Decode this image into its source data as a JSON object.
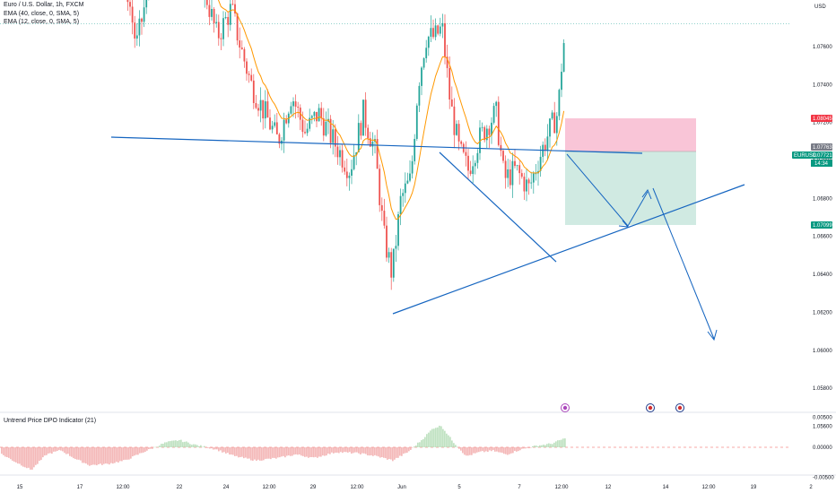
{
  "header": {
    "symbol_line": "Euro / U.S. Dollar, 1h, FXCM",
    "ema_line": "EMA (40, close, 0, SMA, 5)",
    "ema2_line": "EMA (12, close, 0, SMA, 5)",
    "dpo_label": "Untrend Price DPO Indicator (21)"
  },
  "axis": {
    "currency": "USD",
    "price_ticks": [
      "1.08800",
      "1.08600",
      "1.08400",
      "1.08200",
      "1.07600",
      "1.07400",
      "1.07200",
      "1.07000",
      "1.06800",
      "1.06600",
      "1.06400",
      "1.06200",
      "1.06000",
      "1.05800",
      "1.05600"
    ],
    "price_values": [
      1.088,
      1.086,
      1.084,
      1.082,
      1.076,
      1.074,
      1.072,
      1.07,
      1.068,
      1.066,
      1.064,
      1.062,
      1.06,
      1.058,
      1.056
    ],
    "osc_ticks": [
      "0.00500",
      "0.00000",
      "-0.00500"
    ],
    "osc_values": [
      0.005,
      0.0,
      -0.005
    ],
    "time_ticks": [
      "15",
      "17",
      "12:00",
      "22",
      "24",
      "12:00",
      "29",
      "12:00",
      "Jun",
      "5",
      "7",
      "12:00",
      "12",
      "14",
      "12:00",
      "19",
      "2"
    ],
    "time_x": [
      22,
      89,
      137,
      200,
      252,
      300,
      349,
      398,
      448,
      512,
      579,
      626,
      678,
      742,
      790,
      840,
      904
    ]
  },
  "price_badges": {
    "stop_price": "1.08045",
    "entry_price": "1.07763",
    "symbol": "EURUSD",
    "last_price": "1.07721",
    "countdown": "14:34",
    "target_price": "1.07099"
  },
  "colors": {
    "up": "#26a69a",
    "down": "#ef5350",
    "ema": "#ff9800",
    "drawing": "#1565c0",
    "stop_zone": "#f8bbd0",
    "target_zone": "#c8e6dd"
  },
  "chart_data": {
    "type": "candlestick",
    "title": "Euro / U.S. Dollar, 1h, FXCM",
    "ylabel": "USD",
    "ylim": [
      1.0548,
      1.0908
    ],
    "price_series": [
      [
        0,
        1.089
      ],
      [
        15,
        1.0885
      ],
      [
        28,
        1.0862
      ],
      [
        43,
        1.0885
      ],
      [
        58,
        1.0895
      ],
      [
        75,
        1.0875
      ],
      [
        88,
        1.0855
      ],
      [
        105,
        1.082
      ],
      [
        118,
        1.0845
      ],
      [
        130,
        1.0835
      ],
      [
        142,
        1.079
      ],
      [
        152,
        1.076
      ],
      [
        165,
        1.079
      ],
      [
        180,
        1.082
      ],
      [
        195,
        1.0825
      ],
      [
        212,
        1.081
      ],
      [
        228,
        1.079
      ],
      [
        242,
        1.0765
      ],
      [
        258,
        1.078
      ],
      [
        268,
        1.076
      ],
      [
        280,
        1.074
      ],
      [
        295,
        1.0725
      ],
      [
        310,
        1.071
      ],
      [
        325,
        1.0735
      ],
      [
        340,
        1.0715
      ],
      [
        355,
        1.0725
      ],
      [
        372,
        1.071
      ],
      [
        390,
        1.0695
      ],
      [
        405,
        1.0725
      ],
      [
        418,
        1.0705
      ],
      [
        428,
        1.066
      ],
      [
        437,
        1.064
      ],
      [
        447,
        1.068
      ],
      [
        458,
        1.069
      ],
      [
        466,
        1.074
      ],
      [
        475,
        1.0765
      ],
      [
        485,
        1.0765
      ],
      [
        493,
        1.077
      ],
      [
        502,
        1.073
      ],
      [
        512,
        1.0705
      ],
      [
        522,
        1.0695
      ],
      [
        533,
        1.071
      ],
      [
        545,
        1.072
      ],
      [
        553,
        1.0725
      ],
      [
        562,
        1.069
      ],
      [
        575,
        1.0695
      ],
      [
        590,
        1.0685
      ],
      [
        600,
        1.07
      ],
      [
        612,
        1.0715
      ],
      [
        622,
        1.0725
      ],
      [
        628,
        1.0762
      ]
    ],
    "dpo_series": [
      [
        0,
        -0.001
      ],
      [
        18,
        -0.0025
      ],
      [
        35,
        -0.0038
      ],
      [
        52,
        -0.0012
      ],
      [
        68,
        -0.0005
      ],
      [
        85,
        -0.002
      ],
      [
        100,
        -0.003
      ],
      [
        120,
        -0.0028
      ],
      [
        140,
        -0.0022
      ],
      [
        160,
        -0.0008
      ],
      [
        185,
        0.0008
      ],
      [
        200,
        0.0012
      ],
      [
        218,
        0.0004
      ],
      [
        240,
        -0.0003
      ],
      [
        262,
        -0.0015
      ],
      [
        285,
        -0.0022
      ],
      [
        310,
        -0.0018
      ],
      [
        330,
        -0.0012
      ],
      [
        350,
        -0.0018
      ],
      [
        375,
        -0.0008
      ],
      [
        400,
        -0.001
      ],
      [
        420,
        -0.0015
      ],
      [
        438,
        -0.0022
      ],
      [
        455,
        -0.0008
      ],
      [
        470,
        0.0012
      ],
      [
        483,
        0.0032
      ],
      [
        492,
        0.0036
      ],
      [
        505,
        0.001
      ],
      [
        520,
        -0.0015
      ],
      [
        535,
        -0.0008
      ],
      [
        550,
        -0.0006
      ],
      [
        565,
        -0.0012
      ],
      [
        580,
        -0.0004
      ],
      [
        600,
        0.0003
      ],
      [
        615,
        0.0006
      ],
      [
        628,
        0.0014
      ]
    ]
  }
}
